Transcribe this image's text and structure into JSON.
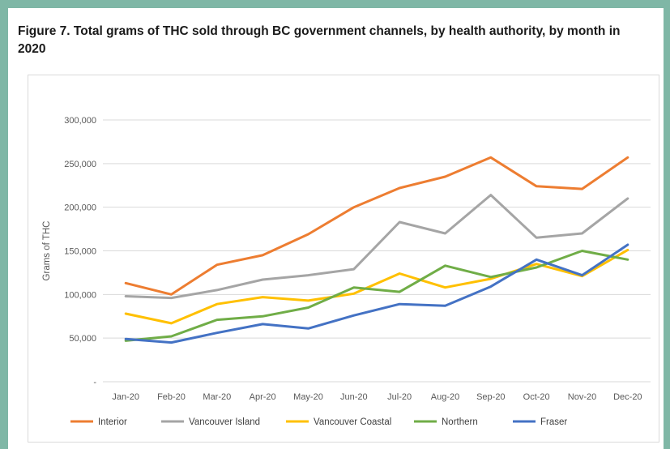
{
  "title": "Figure 7. Total grams of THC sold through BC government channels, by health authority, by month in 2020",
  "chart_data": {
    "type": "line",
    "title": "Figure 7. Total grams of THC sold through BC government channels, by health authority, by month in 2020",
    "xlabel": "",
    "ylabel": "Grams of THC",
    "ylim": [
      0,
      300000
    ],
    "yticks": [
      0,
      50000,
      100000,
      150000,
      200000,
      250000,
      300000
    ],
    "ytick_labels": [
      "-",
      "50,000",
      "100,000",
      "150,000",
      "200,000",
      "250,000",
      "300,000"
    ],
    "grid": true,
    "legend": "bottom",
    "categories": [
      "Jan-20",
      "Feb-20",
      "Mar-20",
      "Apr-20",
      "May-20",
      "Jun-20",
      "Jul-20",
      "Aug-20",
      "Sep-20",
      "Oct-20",
      "Nov-20",
      "Dec-20"
    ],
    "series": [
      {
        "name": "Interior",
        "color": "#ed7d31",
        "values": [
          113000,
          100000,
          134000,
          145000,
          169000,
          200000,
          222000,
          235000,
          257000,
          224000,
          221000,
          257000
        ]
      },
      {
        "name": "Vancouver Island",
        "color": "#a5a5a5",
        "values": [
          98000,
          96000,
          105000,
          117000,
          122000,
          129000,
          183000,
          170000,
          214000,
          165000,
          170000,
          210000
        ]
      },
      {
        "name": "Vancouver Coastal",
        "color": "#ffc000",
        "values": [
          78000,
          67000,
          89000,
          97000,
          93000,
          101000,
          124000,
          108000,
          118000,
          135000,
          121000,
          151000
        ]
      },
      {
        "name": "Northern",
        "color": "#70ad47",
        "values": [
          47000,
          52000,
          71000,
          75000,
          85000,
          108000,
          103000,
          133000,
          120000,
          131000,
          150000,
          140000
        ]
      },
      {
        "name": "Fraser",
        "color": "#4472c4",
        "values": [
          49000,
          45000,
          56000,
          66000,
          61000,
          76000,
          89000,
          87000,
          109000,
          140000,
          122000,
          157000
        ]
      }
    ]
  }
}
